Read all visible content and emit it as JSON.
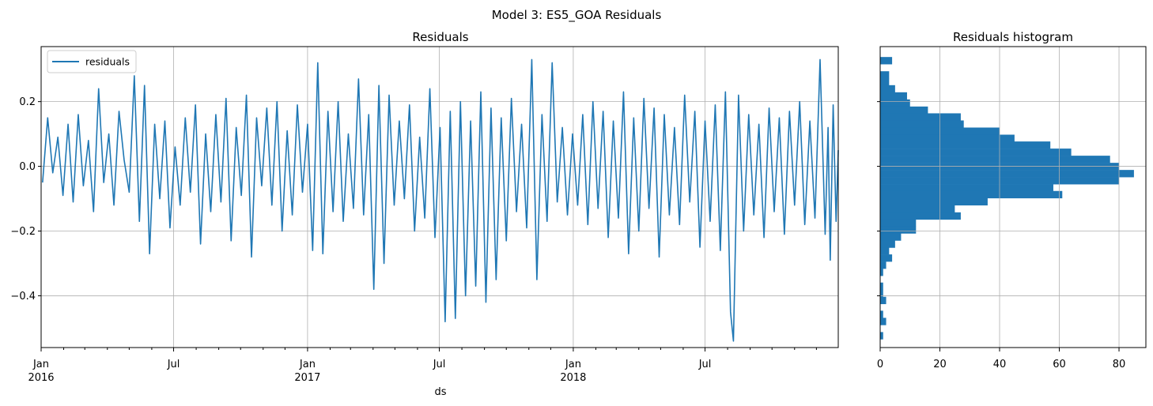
{
  "figure": {
    "suptitle": "Model 3: ES5_GOA Residuals"
  },
  "colors": {
    "series": "#1f77b4",
    "grid": "#b0b0b0",
    "axis": "#000000"
  },
  "chart_data": [
    {
      "type": "line",
      "title": "Residuals",
      "xlabel": "ds",
      "ylabel": "",
      "legend": {
        "position": "top-left",
        "entries": [
          "residuals"
        ]
      },
      "grid": true,
      "xlim": [
        "2016-01-01",
        "2018-12-31"
      ],
      "ylim": [
        -0.56,
        0.37
      ],
      "x_major_ticks": [
        {
          "date": "2016-01-01",
          "label": "Jan",
          "sublabel": "2016"
        },
        {
          "date": "2016-07-01",
          "label": "Jul",
          "sublabel": ""
        },
        {
          "date": "2017-01-01",
          "label": "Jan",
          "sublabel": "2017"
        },
        {
          "date": "2017-07-01",
          "label": "Jul",
          "sublabel": ""
        },
        {
          "date": "2018-01-01",
          "label": "Jan",
          "sublabel": "2018"
        },
        {
          "date": "2018-07-01",
          "label": "Jul",
          "sublabel": ""
        }
      ],
      "y_ticks": [
        {
          "value": 0.2,
          "label": "0.2"
        },
        {
          "value": 0.0,
          "label": "0.0"
        },
        {
          "value": -0.2,
          "label": "−0.2"
        },
        {
          "value": -0.4,
          "label": "−0.4"
        }
      ],
      "series": [
        {
          "name": "residuals",
          "points": [
            [
              "2016-01-03",
              -0.05
            ],
            [
              "2016-01-10",
              0.15
            ],
            [
              "2016-01-17",
              -0.02
            ],
            [
              "2016-01-24",
              0.09
            ],
            [
              "2016-01-31",
              -0.09
            ],
            [
              "2016-02-07",
              0.13
            ],
            [
              "2016-02-14",
              -0.11
            ],
            [
              "2016-02-21",
              0.16
            ],
            [
              "2016-02-28",
              -0.06
            ],
            [
              "2016-03-06",
              0.08
            ],
            [
              "2016-03-13",
              -0.14
            ],
            [
              "2016-03-20",
              0.24
            ],
            [
              "2016-03-27",
              -0.05
            ],
            [
              "2016-04-03",
              0.1
            ],
            [
              "2016-04-10",
              -0.12
            ],
            [
              "2016-04-17",
              0.17
            ],
            [
              "2016-04-24",
              0.02
            ],
            [
              "2016-05-01",
              -0.08
            ],
            [
              "2016-05-08",
              0.28
            ],
            [
              "2016-05-15",
              -0.17
            ],
            [
              "2016-05-22",
              0.25
            ],
            [
              "2016-05-29",
              -0.27
            ],
            [
              "2016-06-05",
              0.13
            ],
            [
              "2016-06-12",
              -0.1
            ],
            [
              "2016-06-19",
              0.14
            ],
            [
              "2016-06-26",
              -0.19
            ],
            [
              "2016-07-03",
              0.06
            ],
            [
              "2016-07-10",
              -0.12
            ],
            [
              "2016-07-17",
              0.15
            ],
            [
              "2016-07-24",
              -0.08
            ],
            [
              "2016-07-31",
              0.19
            ],
            [
              "2016-08-07",
              -0.24
            ],
            [
              "2016-08-14",
              0.1
            ],
            [
              "2016-08-21",
              -0.14
            ],
            [
              "2016-08-28",
              0.16
            ],
            [
              "2016-09-04",
              -0.11
            ],
            [
              "2016-09-11",
              0.21
            ],
            [
              "2016-09-18",
              -0.23
            ],
            [
              "2016-09-25",
              0.12
            ],
            [
              "2016-10-02",
              -0.09
            ],
            [
              "2016-10-09",
              0.22
            ],
            [
              "2016-10-16",
              -0.28
            ],
            [
              "2016-10-23",
              0.15
            ],
            [
              "2016-10-30",
              -0.06
            ],
            [
              "2016-11-06",
              0.18
            ],
            [
              "2016-11-13",
              -0.12
            ],
            [
              "2016-11-20",
              0.2
            ],
            [
              "2016-11-27",
              -0.2
            ],
            [
              "2016-12-04",
              0.11
            ],
            [
              "2016-12-11",
              -0.15
            ],
            [
              "2016-12-18",
              0.19
            ],
            [
              "2016-12-25",
              -0.08
            ],
            [
              "2017-01-01",
              0.13
            ],
            [
              "2017-01-08",
              -0.26
            ],
            [
              "2017-01-15",
              0.32
            ],
            [
              "2017-01-22",
              -0.27
            ],
            [
              "2017-01-29",
              0.17
            ],
            [
              "2017-02-05",
              -0.14
            ],
            [
              "2017-02-12",
              0.2
            ],
            [
              "2017-02-19",
              -0.17
            ],
            [
              "2017-02-26",
              0.1
            ],
            [
              "2017-03-05",
              -0.13
            ],
            [
              "2017-03-12",
              0.27
            ],
            [
              "2017-03-19",
              -0.15
            ],
            [
              "2017-03-26",
              0.16
            ],
            [
              "2017-04-02",
              -0.38
            ],
            [
              "2017-04-09",
              0.25
            ],
            [
              "2017-04-16",
              -0.3
            ],
            [
              "2017-04-23",
              0.22
            ],
            [
              "2017-04-30",
              -0.12
            ],
            [
              "2017-05-07",
              0.14
            ],
            [
              "2017-05-14",
              -0.1
            ],
            [
              "2017-05-21",
              0.19
            ],
            [
              "2017-05-28",
              -0.2
            ],
            [
              "2017-06-04",
              0.09
            ],
            [
              "2017-06-11",
              -0.16
            ],
            [
              "2017-06-18",
              0.24
            ],
            [
              "2017-06-25",
              -0.22
            ],
            [
              "2017-07-02",
              0.12
            ],
            [
              "2017-07-09",
              -0.48
            ],
            [
              "2017-07-16",
              0.17
            ],
            [
              "2017-07-23",
              -0.47
            ],
            [
              "2017-07-30",
              0.2
            ],
            [
              "2017-08-06",
              -0.4
            ],
            [
              "2017-08-13",
              0.14
            ],
            [
              "2017-08-20",
              -0.37
            ],
            [
              "2017-08-27",
              0.23
            ],
            [
              "2017-09-03",
              -0.42
            ],
            [
              "2017-09-10",
              0.18
            ],
            [
              "2017-09-17",
              -0.35
            ],
            [
              "2017-09-24",
              0.15
            ],
            [
              "2017-10-01",
              -0.23
            ],
            [
              "2017-10-08",
              0.21
            ],
            [
              "2017-10-15",
              -0.14
            ],
            [
              "2017-10-22",
              0.13
            ],
            [
              "2017-10-29",
              -0.19
            ],
            [
              "2017-11-05",
              0.33
            ],
            [
              "2017-11-12",
              -0.35
            ],
            [
              "2017-11-19",
              0.16
            ],
            [
              "2017-11-26",
              -0.17
            ],
            [
              "2017-12-03",
              0.32
            ],
            [
              "2017-12-10",
              -0.11
            ],
            [
              "2017-12-17",
              0.12
            ],
            [
              "2017-12-24",
              -0.15
            ],
            [
              "2017-12-31",
              0.1
            ],
            [
              "2018-01-07",
              -0.12
            ],
            [
              "2018-01-14",
              0.16
            ],
            [
              "2018-01-21",
              -0.18
            ],
            [
              "2018-01-28",
              0.2
            ],
            [
              "2018-02-04",
              -0.13
            ],
            [
              "2018-02-11",
              0.17
            ],
            [
              "2018-02-18",
              -0.22
            ],
            [
              "2018-02-25",
              0.14
            ],
            [
              "2018-03-04",
              -0.16
            ],
            [
              "2018-03-11",
              0.23
            ],
            [
              "2018-03-18",
              -0.27
            ],
            [
              "2018-03-25",
              0.15
            ],
            [
              "2018-04-01",
              -0.2
            ],
            [
              "2018-04-08",
              0.21
            ],
            [
              "2018-04-15",
              -0.13
            ],
            [
              "2018-04-22",
              0.18
            ],
            [
              "2018-04-29",
              -0.28
            ],
            [
              "2018-05-06",
              0.16
            ],
            [
              "2018-05-13",
              -0.15
            ],
            [
              "2018-05-20",
              0.12
            ],
            [
              "2018-05-27",
              -0.18
            ],
            [
              "2018-06-03",
              0.22
            ],
            [
              "2018-06-10",
              -0.11
            ],
            [
              "2018-06-17",
              0.17
            ],
            [
              "2018-06-24",
              -0.25
            ],
            [
              "2018-07-01",
              0.14
            ],
            [
              "2018-07-08",
              -0.17
            ],
            [
              "2018-07-15",
              0.19
            ],
            [
              "2018-07-22",
              -0.26
            ],
            [
              "2018-07-29",
              0.23
            ],
            [
              "2018-08-05",
              -0.45
            ],
            [
              "2018-08-09",
              -0.54
            ],
            [
              "2018-08-16",
              0.22
            ],
            [
              "2018-08-23",
              -0.2
            ],
            [
              "2018-08-30",
              0.16
            ],
            [
              "2018-09-06",
              -0.15
            ],
            [
              "2018-09-13",
              0.13
            ],
            [
              "2018-09-20",
              -0.22
            ],
            [
              "2018-09-27",
              0.18
            ],
            [
              "2018-10-04",
              -0.14
            ],
            [
              "2018-10-11",
              0.15
            ],
            [
              "2018-10-18",
              -0.21
            ],
            [
              "2018-10-25",
              0.17
            ],
            [
              "2018-11-01",
              -0.12
            ],
            [
              "2018-11-08",
              0.2
            ],
            [
              "2018-11-15",
              -0.18
            ],
            [
              "2018-11-22",
              0.14
            ],
            [
              "2018-11-29",
              -0.16
            ],
            [
              "2018-12-06",
              0.33
            ],
            [
              "2018-12-13",
              -0.21
            ],
            [
              "2018-12-17",
              0.12
            ],
            [
              "2018-12-20",
              -0.29
            ],
            [
              "2018-12-24",
              0.19
            ],
            [
              "2018-12-28",
              -0.17
            ],
            [
              "2018-12-31",
              0.05
            ]
          ]
        }
      ]
    },
    {
      "type": "bar",
      "orientation": "horizontal",
      "title": "Residuals histogram",
      "xlabel": "",
      "ylabel": "",
      "grid": true,
      "xlim": [
        0,
        89
      ],
      "ylim": [
        -0.56,
        0.37
      ],
      "x_ticks": [
        {
          "value": 0,
          "label": "0"
        },
        {
          "value": 20,
          "label": "20"
        },
        {
          "value": 40,
          "label": "40"
        },
        {
          "value": 60,
          "label": "60"
        },
        {
          "value": 80,
          "label": "80"
        }
      ],
      "bin_width": 0.0217,
      "bins": [
        {
          "bin_center": 0.327,
          "count": 4
        },
        {
          "bin_center": 0.283,
          "count": 3
        },
        {
          "bin_center": 0.261,
          "count": 3
        },
        {
          "bin_center": 0.24,
          "count": 5
        },
        {
          "bin_center": 0.218,
          "count": 9
        },
        {
          "bin_center": 0.196,
          "count": 10
        },
        {
          "bin_center": 0.174,
          "count": 16
        },
        {
          "bin_center": 0.153,
          "count": 27
        },
        {
          "bin_center": 0.131,
          "count": 28
        },
        {
          "bin_center": 0.109,
          "count": 40
        },
        {
          "bin_center": 0.087,
          "count": 45
        },
        {
          "bin_center": 0.066,
          "count": 57
        },
        {
          "bin_center": 0.044,
          "count": 64
        },
        {
          "bin_center": 0.022,
          "count": 77
        },
        {
          "bin_center": 0.0,
          "count": 80
        },
        {
          "bin_center": -0.022,
          "count": 85
        },
        {
          "bin_center": -0.044,
          "count": 80
        },
        {
          "bin_center": -0.066,
          "count": 58
        },
        {
          "bin_center": -0.087,
          "count": 61
        },
        {
          "bin_center": -0.109,
          "count": 36
        },
        {
          "bin_center": -0.131,
          "count": 25
        },
        {
          "bin_center": -0.153,
          "count": 27
        },
        {
          "bin_center": -0.174,
          "count": 12
        },
        {
          "bin_center": -0.196,
          "count": 12
        },
        {
          "bin_center": -0.218,
          "count": 7
        },
        {
          "bin_center": -0.24,
          "count": 5
        },
        {
          "bin_center": -0.261,
          "count": 3
        },
        {
          "bin_center": -0.283,
          "count": 4
        },
        {
          "bin_center": -0.305,
          "count": 2
        },
        {
          "bin_center": -0.327,
          "count": 1
        },
        {
          "bin_center": -0.349,
          "count": 0
        },
        {
          "bin_center": -0.37,
          "count": 1
        },
        {
          "bin_center": -0.392,
          "count": 1
        },
        {
          "bin_center": -0.414,
          "count": 2
        },
        {
          "bin_center": -0.436,
          "count": 0
        },
        {
          "bin_center": -0.457,
          "count": 1
        },
        {
          "bin_center": -0.479,
          "count": 2
        },
        {
          "bin_center": -0.501,
          "count": 0
        },
        {
          "bin_center": -0.523,
          "count": 1
        }
      ]
    }
  ]
}
